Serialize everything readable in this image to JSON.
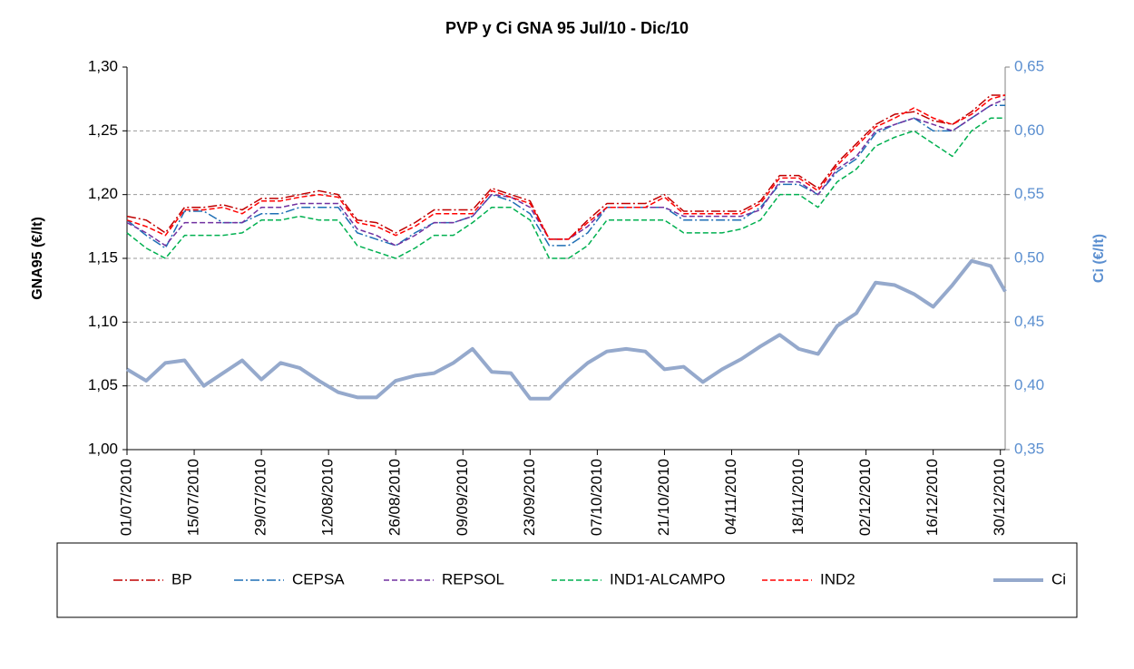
{
  "chart_data": {
    "type": "line",
    "title": "PVP y Ci GNA 95  Jul/10 -   Dic/10",
    "y_label": "GNA95 (€/lt)",
    "y2_label": "Ci (€/lt)",
    "x": [
      "01/07/2010",
      "05/07/2010",
      "09/07/2010",
      "13/07/2010",
      "17/07/2010",
      "21/07/2010",
      "25/07/2010",
      "29/07/2010",
      "02/08/2010",
      "06/08/2010",
      "10/08/2010",
      "14/08/2010",
      "18/08/2010",
      "22/08/2010",
      "26/08/2010",
      "30/08/2010",
      "03/09/2010",
      "07/09/2010",
      "11/09/2010",
      "15/09/2010",
      "19/09/2010",
      "23/09/2010",
      "27/09/2010",
      "01/10/2010",
      "05/10/2010",
      "09/10/2010",
      "13/10/2010",
      "17/10/2010",
      "21/10/2010",
      "25/10/2010",
      "29/10/2010",
      "02/11/2010",
      "06/11/2010",
      "10/11/2010",
      "14/11/2010",
      "18/11/2010",
      "22/11/2010",
      "26/11/2010",
      "30/11/2010",
      "04/12/2010",
      "08/12/2010",
      "12/12/2010",
      "16/12/2010",
      "20/12/2010",
      "24/12/2010",
      "28/12/2010",
      "31/12/2010"
    ],
    "xlim": [
      "01/07/2010",
      "31/12/2010"
    ],
    "xticks": [
      "01/07/2010",
      "15/07/2010",
      "29/07/2010",
      "12/08/2010",
      "26/08/2010",
      "09/09/2010",
      "23/09/2010",
      "07/10/2010",
      "21/10/2010",
      "04/11/2010",
      "18/11/2010",
      "02/12/2010",
      "16/12/2010",
      "30/12/2010"
    ],
    "ylim": [
      1.0,
      1.3
    ],
    "yticks": [
      {
        "value": 1.0,
        "label": "1,00"
      },
      {
        "value": 1.05,
        "label": "1,05"
      },
      {
        "value": 1.1,
        "label": "1,10"
      },
      {
        "value": 1.15,
        "label": "1,15"
      },
      {
        "value": 1.2,
        "label": "1,20"
      },
      {
        "value": 1.25,
        "label": "1,25"
      },
      {
        "value": 1.3,
        "label": "1,30"
      }
    ],
    "y2lim": [
      0.35,
      0.65
    ],
    "y2ticks": [
      {
        "value": 0.35,
        "label": "0,35"
      },
      {
        "value": 0.4,
        "label": "0,40"
      },
      {
        "value": 0.45,
        "label": "0,45"
      },
      {
        "value": 0.5,
        "label": "0,50"
      },
      {
        "value": 0.55,
        "label": "0,55"
      },
      {
        "value": 0.6,
        "label": "0,60"
      },
      {
        "value": 0.65,
        "label": "0,65"
      }
    ],
    "grid": true,
    "legend": "bottom",
    "series": [
      {
        "name": "BP",
        "color": "#c00000",
        "dash": "dashdot",
        "values": [
          1.183,
          1.18,
          1.17,
          1.19,
          1.19,
          1.192,
          1.188,
          1.197,
          1.197,
          1.2,
          1.203,
          1.2,
          1.18,
          1.178,
          1.17,
          1.178,
          1.188,
          1.188,
          1.188,
          1.205,
          1.2,
          1.195,
          1.165,
          1.165,
          1.18,
          1.193,
          1.193,
          1.193,
          1.2,
          1.187,
          1.187,
          1.187,
          1.187,
          1.195,
          1.215,
          1.215,
          1.205,
          1.225,
          1.24,
          1.255,
          1.263,
          1.265,
          1.258,
          1.255,
          1.265,
          1.278,
          1.278
        ]
      },
      {
        "name": "CEPSA",
        "color": "#1f6fb5",
        "dash": "dashdot",
        "values": [
          1.18,
          1.168,
          1.158,
          1.187,
          1.187,
          1.178,
          1.178,
          1.185,
          1.185,
          1.19,
          1.19,
          1.19,
          1.17,
          1.165,
          1.16,
          1.17,
          1.178,
          1.178,
          1.183,
          1.2,
          1.195,
          1.185,
          1.16,
          1.16,
          1.17,
          1.19,
          1.19,
          1.19,
          1.19,
          1.18,
          1.18,
          1.18,
          1.18,
          1.19,
          1.208,
          1.208,
          1.2,
          1.218,
          1.228,
          1.248,
          1.255,
          1.26,
          1.25,
          1.25,
          1.26,
          1.27,
          1.27
        ]
      },
      {
        "name": "REPSOL",
        "color": "#7030a0",
        "dash": "dash",
        "values": [
          1.178,
          1.17,
          1.16,
          1.178,
          1.178,
          1.178,
          1.178,
          1.19,
          1.19,
          1.193,
          1.193,
          1.193,
          1.173,
          1.168,
          1.16,
          1.168,
          1.178,
          1.178,
          1.183,
          1.2,
          1.198,
          1.19,
          1.165,
          1.165,
          1.175,
          1.19,
          1.19,
          1.19,
          1.19,
          1.183,
          1.183,
          1.183,
          1.183,
          1.188,
          1.21,
          1.21,
          1.2,
          1.22,
          1.23,
          1.25,
          1.255,
          1.26,
          1.255,
          1.25,
          1.26,
          1.27,
          1.275
        ]
      },
      {
        "name": "IND1-ALCAMPO",
        "color": "#00b050",
        "dash": "dash",
        "values": [
          1.17,
          1.158,
          1.15,
          1.168,
          1.168,
          1.168,
          1.17,
          1.18,
          1.18,
          1.183,
          1.18,
          1.18,
          1.16,
          1.155,
          1.15,
          1.158,
          1.168,
          1.168,
          1.178,
          1.19,
          1.19,
          1.18,
          1.15,
          1.15,
          1.16,
          1.18,
          1.18,
          1.18,
          1.18,
          1.17,
          1.17,
          1.17,
          1.173,
          1.18,
          1.2,
          1.2,
          1.19,
          1.21,
          1.22,
          1.238,
          1.245,
          1.25,
          1.24,
          1.23,
          1.25,
          1.26,
          1.26
        ]
      },
      {
        "name": "IND2",
        "color": "#ff0000",
        "dash": "dash",
        "values": [
          1.18,
          1.175,
          1.168,
          1.188,
          1.188,
          1.19,
          1.185,
          1.195,
          1.195,
          1.198,
          1.2,
          1.198,
          1.178,
          1.175,
          1.168,
          1.175,
          1.185,
          1.185,
          1.185,
          1.203,
          1.198,
          1.193,
          1.165,
          1.165,
          1.178,
          1.19,
          1.19,
          1.19,
          1.198,
          1.185,
          1.185,
          1.185,
          1.185,
          1.193,
          1.213,
          1.213,
          1.203,
          1.223,
          1.238,
          1.253,
          1.26,
          1.268,
          1.26,
          1.255,
          1.263,
          1.275,
          1.278
        ]
      },
      {
        "name": "Ci",
        "color": "#95a9cc",
        "dash": "solid",
        "axis": "y2",
        "values": [
          0.413,
          0.404,
          0.418,
          0.42,
          0.4,
          0.41,
          0.42,
          0.405,
          0.418,
          0.414,
          0.404,
          0.395,
          0.391,
          0.391,
          0.404,
          0.408,
          0.41,
          0.418,
          0.429,
          0.411,
          0.41,
          0.39,
          0.39,
          0.405,
          0.418,
          0.427,
          0.429,
          0.427,
          0.413,
          0.415,
          0.403,
          0.413,
          0.421,
          0.431,
          0.44,
          0.429,
          0.425,
          0.447,
          0.457,
          0.481,
          0.479,
          0.472,
          0.462,
          0.479,
          0.498,
          0.494,
          0.474
        ]
      }
    ]
  }
}
